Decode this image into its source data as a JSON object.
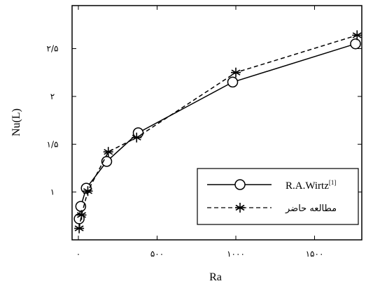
{
  "chart_data": {
    "type": "line",
    "xlabel": "Ra",
    "ylabel": "Nu(L)",
    "xlim": [
      -40,
      1800
    ],
    "ylim": [
      0.5,
      2.95
    ],
    "xticks": [
      {
        "value": 0,
        "label": "۰"
      },
      {
        "value": 500,
        "label": "۵۰۰"
      },
      {
        "value": 1000,
        "label": "۱۰۰۰"
      },
      {
        "value": 1500,
        "label": "۱۵۰۰"
      }
    ],
    "yticks": [
      {
        "value": 1,
        "label": "۱"
      },
      {
        "value": 1.5,
        "label": "۱/۵"
      },
      {
        "value": 2,
        "label": "۲"
      },
      {
        "value": 2.5,
        "label": "۲/۵"
      }
    ],
    "legend_position": "bottom-right",
    "series": [
      {
        "name": "R.A.Wirtz",
        "name_superscript": "[1]",
        "style": "solid",
        "marker": "circle",
        "color": "#000000",
        "x": [
          5,
          15,
          50,
          180,
          380,
          980,
          1760
        ],
        "y": [
          0.72,
          0.85,
          1.04,
          1.32,
          1.62,
          2.15,
          2.55
        ]
      },
      {
        "name": "مطالعه حاضر",
        "style": "dashed",
        "marker": "asterisk",
        "color": "#000000",
        "x": [
          5,
          20,
          60,
          190,
          370,
          1000,
          1770
        ],
        "y": [
          0.62,
          0.76,
          1.01,
          1.42,
          1.57,
          2.25,
          2.64
        ]
      }
    ]
  }
}
